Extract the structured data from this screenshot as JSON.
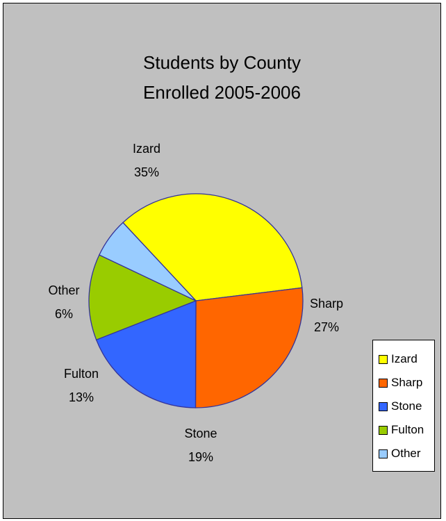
{
  "chart_data": {
    "type": "pie",
    "title": [
      "Students by County",
      "Enrolled 2005-2006"
    ],
    "slices": [
      {
        "name": "Izard",
        "value": 35,
        "label": "35%",
        "color": "#ffff00"
      },
      {
        "name": "Sharp",
        "value": 27,
        "label": "27%",
        "color": "#ff6600"
      },
      {
        "name": "Stone",
        "value": 19,
        "label": "19%",
        "color": "#3366ff"
      },
      {
        "name": "Fulton",
        "value": 13,
        "label": "13%",
        "color": "#99cc00"
      },
      {
        "name": "Other",
        "value": 6,
        "label": "6%",
        "color": "#99ccff"
      }
    ],
    "legend": {
      "placement": "right",
      "entries": [
        "Izard",
        "Sharp",
        "Stone",
        "Fulton",
        "Other"
      ]
    },
    "colors": {
      "background": "#c0c0c0",
      "slice_border": "#333399"
    }
  }
}
